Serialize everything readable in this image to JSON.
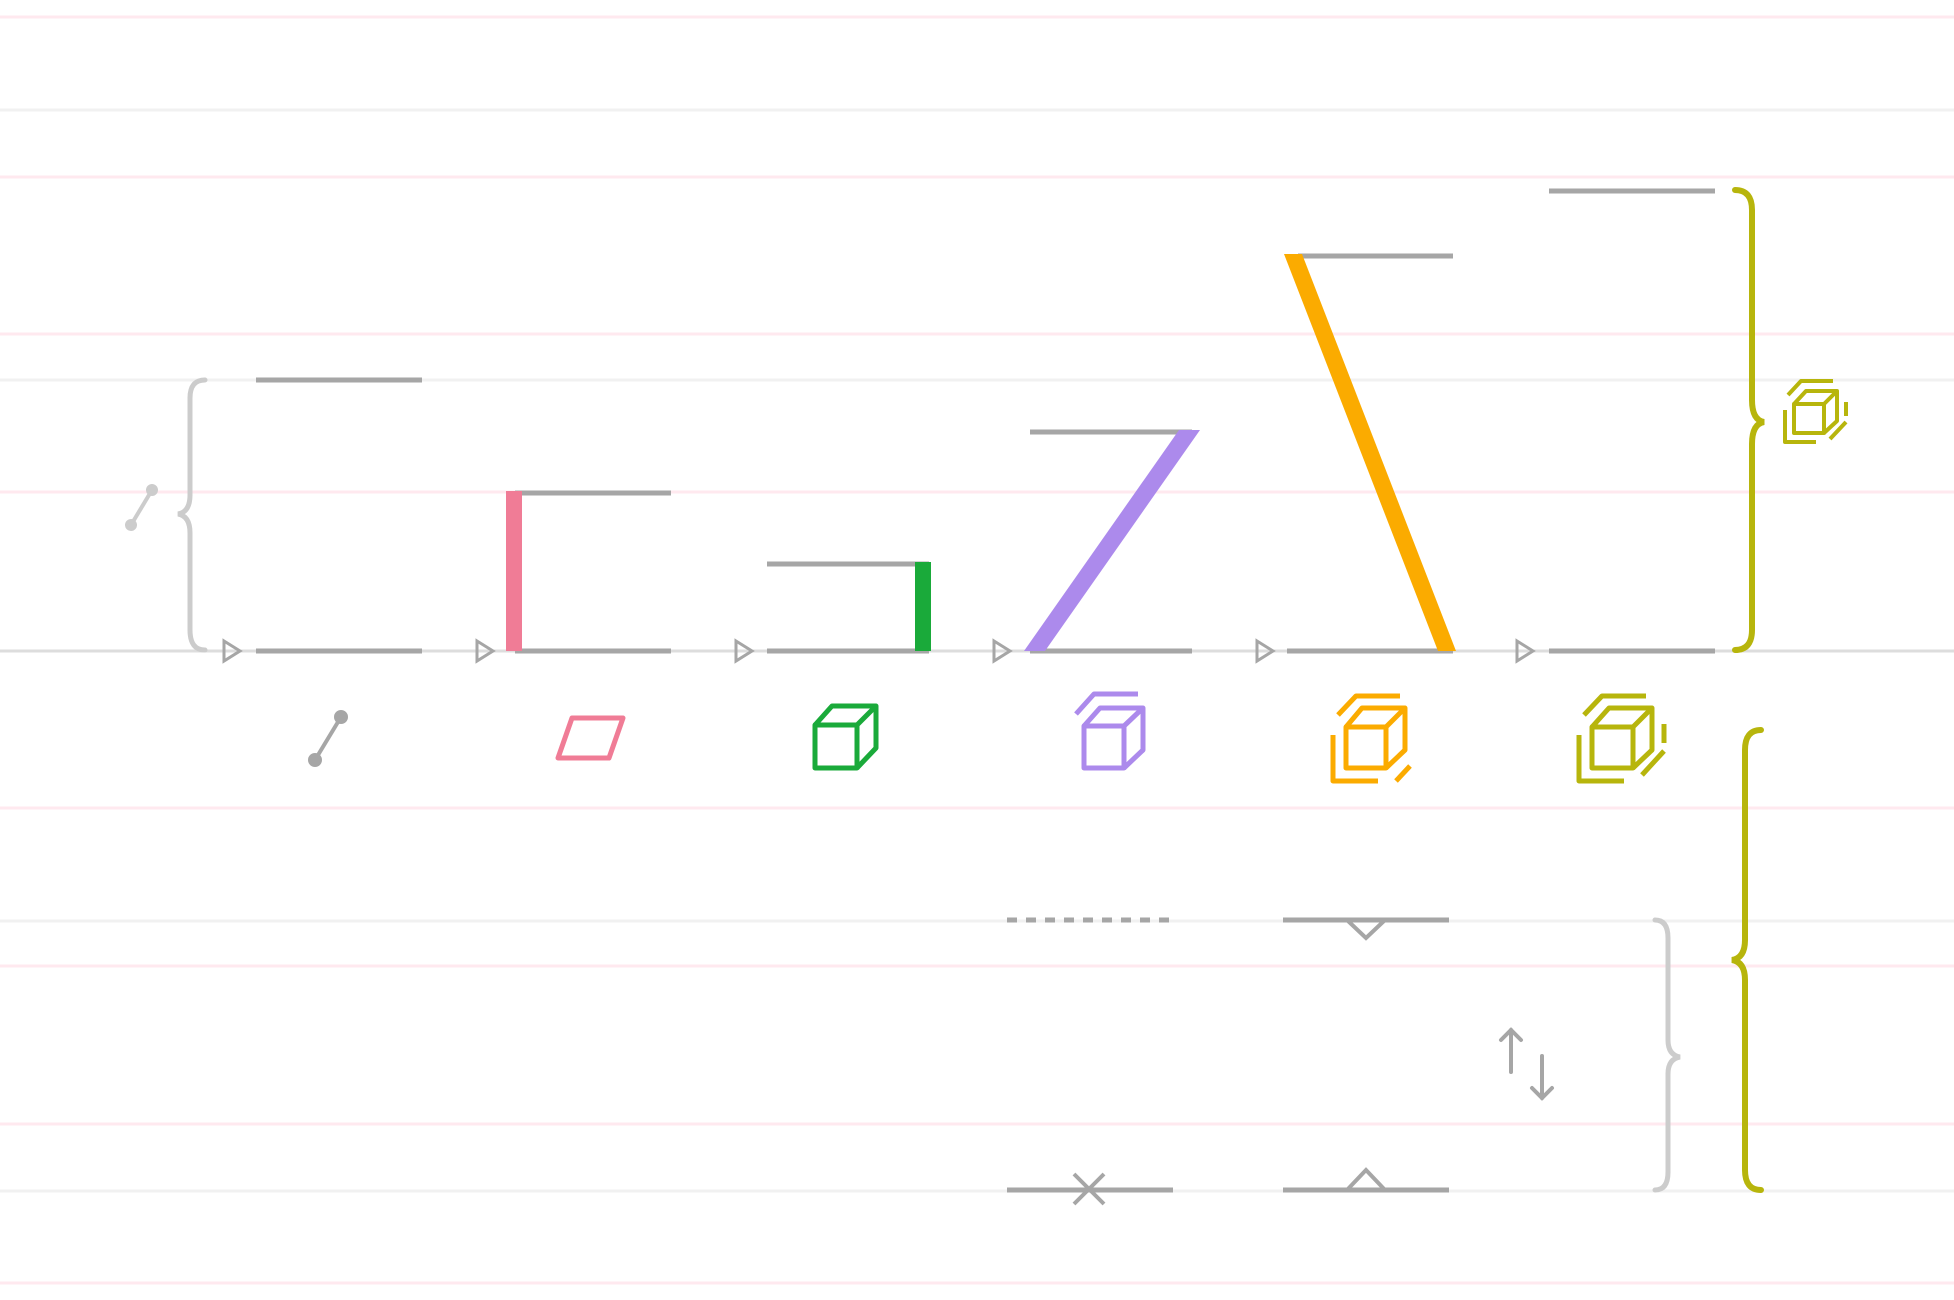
{
  "colors": {
    "gray": "#a6a6a6",
    "light_gray": "#cccccc",
    "pink": "#f07c96",
    "green": "#1aaa3a",
    "purple": "#ac8aec",
    "orange": "#fbab00",
    "olive": "#b7b50c",
    "guide_pink": "#ffe9ef",
    "guide_gray": "#f1f1f1",
    "baseline": "#dddddd"
  },
  "icons": {
    "dimension_0": "segment-icon",
    "dimension_1": "parallelogram-icon",
    "dimension_2": "cube-icon",
    "dimension_3": "stacked-cube-icon",
    "dimension_4": "double-stacked-cube-icon",
    "dimension_5": "triple-stacked-cube-icon",
    "lower_group": "up-down-arrows-icon"
  },
  "columns": [
    {
      "id": "col-0",
      "color": "gray",
      "rise_level": 0,
      "icon": "segment-icon"
    },
    {
      "id": "col-1",
      "color": "pink",
      "rise_level": 1,
      "icon": "parallelogram-icon"
    },
    {
      "id": "col-2",
      "color": "green",
      "rise_level": 2,
      "icon": "cube-icon"
    },
    {
      "id": "col-3",
      "color": "purple",
      "rise_level": 3,
      "icon": "stacked-cube-icon"
    },
    {
      "id": "col-4",
      "color": "orange",
      "rise_level": 4,
      "icon": "double-stacked-cube-icon"
    },
    {
      "id": "col-5",
      "color": "olive",
      "rise_level": 5,
      "icon": "triple-stacked-cube-icon"
    }
  ],
  "lower_group": {
    "top_markers": [
      "dashed-line",
      "down-caret-line"
    ],
    "bottom_markers": [
      "cross-line",
      "up-caret-line"
    ],
    "icon": "up-down-arrows-icon"
  }
}
